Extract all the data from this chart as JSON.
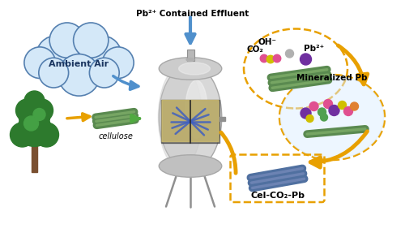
{
  "bg_color": "#ffffff",
  "ambient_air_text": "Ambient Air",
  "cellulose_text": "cellulose",
  "effluent_text": "Pb²⁺ Contained Effluent",
  "oh_text": "OH⁻",
  "co2_text": "CO₂",
  "pb2_text": "Pb²⁺",
  "mineralized_text": "Mineralized Pb",
  "cel_co2_pb_text": "Cel-CO₂-Pb",
  "cloud_color": "#d4e8f8",
  "cloud_edge_color": "#5580b0",
  "tree_dark": "#2d7a2d",
  "tree_light": "#44a044",
  "trunk_color": "#7a5030",
  "reactor_body": "#d8d8d8",
  "reactor_dark": "#a8a8a8",
  "reactor_highlight": "#f0f0f0",
  "window_color": "#c8b870",
  "arrow_orange": "#e8a000",
  "arrow_blue": "#5090cc",
  "arrow_green": "#50aa40",
  "dashed_color": "#e8a000",
  "cel_green_dark": "#5a8a50",
  "cel_green_light": "#8ab870",
  "cel_blue_dark": "#5070a0",
  "cel_blue_light": "#8090c0",
  "mol_pink": "#e05090",
  "mol_yellow": "#d0c000",
  "mol_gray": "#b0b0b0",
  "mol_purple": "#7030a0",
  "mol_green_sm": "#50a050",
  "mol_orange_sm": "#e08030",
  "mineralized_bg": "#ddeeff"
}
